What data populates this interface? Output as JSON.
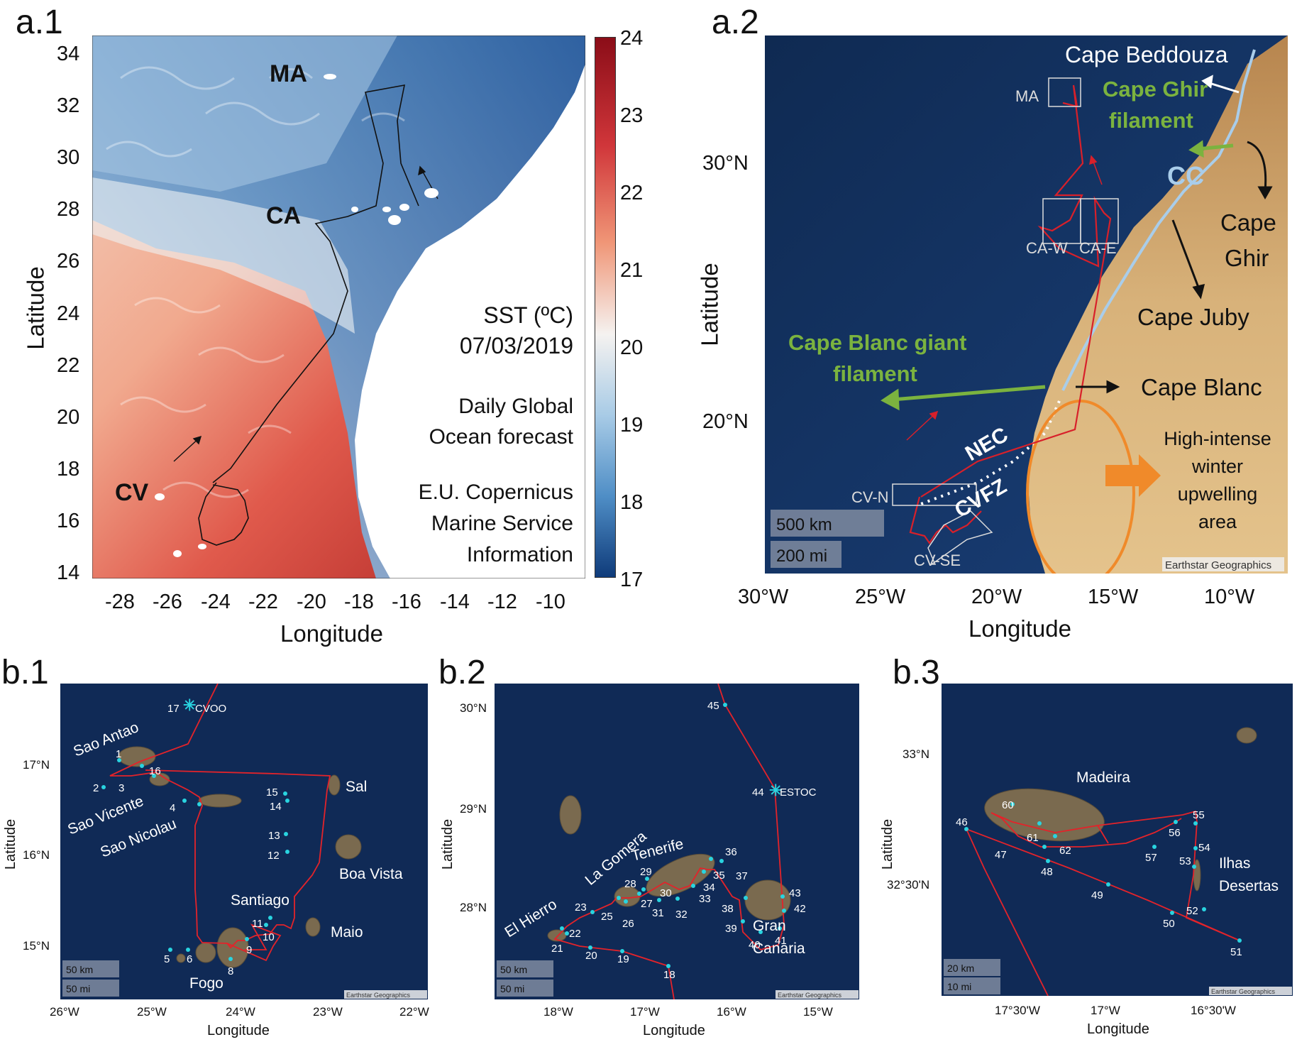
{
  "panels": {
    "a1": "a.1",
    "a2": "a.2",
    "b1": "b.1",
    "b2": "b.2",
    "b3": "b.3"
  },
  "a1": {
    "xlabel": "Longitude",
    "ylabel": "Latitude",
    "xticks": [
      "-28",
      "-26",
      "-24",
      "-22",
      "-20",
      "-18",
      "-16",
      "-14",
      "-12",
      "-10"
    ],
    "yticks": [
      "34",
      "32",
      "30",
      "28",
      "26",
      "24",
      "22",
      "20",
      "18",
      "16",
      "14"
    ],
    "colorbar_ticks": [
      "24",
      "23",
      "22",
      "21",
      "20",
      "19",
      "18",
      "17"
    ],
    "colorbar_range": [
      17,
      24
    ],
    "colorbar_colors": [
      "#08306b",
      "#2c6fb0",
      "#8fbde0",
      "#f2f2f2",
      "#f4b49a",
      "#e0544a",
      "#a50f15"
    ],
    "sites": [
      "MA",
      "CA",
      "CV"
    ],
    "legend": [
      "SST (ºC)",
      "07/03/2019",
      "Daily Global",
      "Ocean forecast",
      "E.U. Copernicus",
      "Marine Service",
      "Information"
    ]
  },
  "a2": {
    "xlabel": "Longitude",
    "ylabel": "Latitude",
    "xticks": [
      "30°W",
      "25°W",
      "20°W",
      "15°W",
      "10°W"
    ],
    "yticks": [
      "30°N",
      "20°N"
    ],
    "boxes": [
      "MA",
      "CA-W",
      "CA-E",
      "CV-N",
      "CV-SE"
    ],
    "labels": {
      "cape_beddouza": "Cape Beddouza",
      "cape_ghir_filament_1": "Cape Ghir",
      "cape_ghir_filament_2": "filament",
      "cc": "CC",
      "cape_ghir_1": "Cape",
      "cape_ghir_2": "Ghir",
      "cape_juby": "Cape Juby",
      "cape_blanc_filament_1": "Cape Blanc giant",
      "cape_blanc_filament_2": "filament",
      "cape_blanc": "Cape Blanc",
      "nec": "NEC",
      "cvfz": "CVFZ",
      "upwelling_1": "High-intense",
      "upwelling_2": "winter",
      "upwelling_3": "upwelling",
      "upwelling_4": "area"
    },
    "scale_km": "500 km",
    "scale_mi": "200 mi",
    "credit": "Earthstar Geographics"
  },
  "b1": {
    "xlabel": "Longitude",
    "ylabel": "Latitude",
    "xticks": [
      "26°W",
      "25°W",
      "24°W",
      "23°W",
      "22°W"
    ],
    "yticks": [
      "17°N",
      "16°N",
      "15°N"
    ],
    "islands": [
      "Sao Antao",
      "Sao Vicente",
      "Sao Nicolau",
      "Sal",
      "Boa Vista",
      "Santiago",
      "Maio",
      "Fogo"
    ],
    "stations": [
      "1",
      "2",
      "3",
      "4",
      "5",
      "6",
      "8",
      "9",
      "10",
      "11",
      "12",
      "13",
      "14",
      "15",
      "16",
      "17"
    ],
    "cvoo": "CVOO",
    "scale_km": "50 km",
    "scale_mi": "50 mi",
    "credit": "Earthstar Geographics"
  },
  "b2": {
    "xlabel": "Longitude",
    "ylabel": "Latitude",
    "xticks": [
      "18°W",
      "17°W",
      "16°W",
      "15°W"
    ],
    "yticks": [
      "30°N",
      "29°N",
      "28°N"
    ],
    "islands": [
      "El Hierro",
      "La Gomera",
      "Tenerife",
      "Gran",
      "Canaria"
    ],
    "stations": [
      "18",
      "19",
      "20",
      "21",
      "22",
      "23",
      "25",
      "26",
      "27",
      "28",
      "29",
      "30",
      "31",
      "32",
      "33",
      "34",
      "35",
      "36",
      "37",
      "38",
      "39",
      "40",
      "41",
      "42",
      "43",
      "44",
      "45"
    ],
    "estoc": "ESTOC",
    "scale_km": "50 km",
    "scale_mi": "50 mi",
    "credit": "Earthstar Geographics"
  },
  "b3": {
    "xlabel": "Longitude",
    "ylabel": "Latitude",
    "xticks": [
      "17°30'W",
      "17°W",
      "16°30'W"
    ],
    "yticks": [
      "33°N",
      "32°30'N"
    ],
    "islands": [
      "Madeira",
      "Ilhas",
      "Desertas"
    ],
    "stations": [
      "46",
      "47",
      "48",
      "49",
      "50",
      "51",
      "52",
      "53",
      "54",
      "55",
      "56",
      "57",
      "60",
      "61",
      "62"
    ],
    "scale_km": "20 km",
    "scale_mi": "10 mi",
    "credit": "Earthstar Geographics"
  }
}
